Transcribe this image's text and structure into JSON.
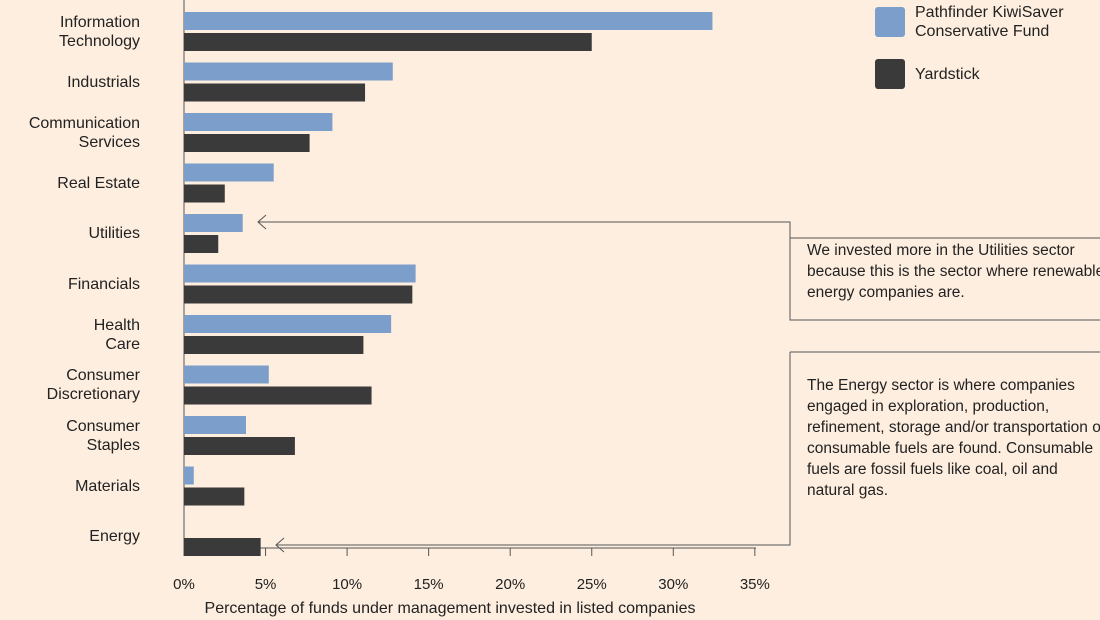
{
  "chart_data": {
    "type": "bar",
    "orientation": "horizontal",
    "categories": [
      "Information\nTechnology",
      "Industrials",
      "Communication\nServices",
      "Real Estate",
      "Utilities",
      "Financials",
      "Health\nCare",
      "Consumer\nDiscretionary",
      "Consumer\nStaples",
      "Materials",
      "Energy"
    ],
    "series": [
      {
        "name": "Pathfinder KiwiSaver\nConservative Fund",
        "color": "#7b9fca",
        "values": [
          32.4,
          12.8,
          9.1,
          5.5,
          3.6,
          14.2,
          12.7,
          5.2,
          3.8,
          0.6,
          0
        ]
      },
      {
        "name": "Yardstick",
        "color": "#3a3a3a",
        "values": [
          25.0,
          11.1,
          7.7,
          2.5,
          2.1,
          14.0,
          11.0,
          11.5,
          6.8,
          3.7,
          4.7
        ]
      }
    ],
    "xlim": [
      0,
      35.5
    ],
    "xticks": [
      {
        "value": 0,
        "label": "0%"
      },
      {
        "value": 5,
        "label": "5%"
      },
      {
        "value": 10,
        "label": "10%"
      },
      {
        "value": 15,
        "label": "15%"
      },
      {
        "value": 20,
        "label": "20%"
      },
      {
        "value": 25,
        "label": "25%"
      },
      {
        "value": 30,
        "label": "30%"
      },
      {
        "value": 35,
        "label": "35%"
      }
    ],
    "xlabel": "Percentage of funds under management invested in listed companies",
    "annotations": [
      {
        "text": "We invested more in the Utilities sector because this is the sector where renewable energy companies are."
      },
      {
        "text": "The Energy sector is where companies engaged in exploration, production, refinement, storage and/or transportation of consumable fuels are found. Consumable fuels are fossil fuels like coal, oil and natural gas."
      }
    ]
  }
}
